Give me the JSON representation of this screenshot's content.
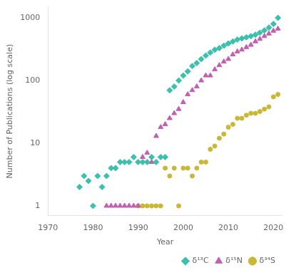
{
  "chart_data": {
    "type": "scatter",
    "xlabel": "Year",
    "ylabel": "Number of Publications (log scale)",
    "xlim": [
      1970,
      2022
    ],
    "ylim": [
      0.7,
      1500
    ],
    "xticks": [
      1970,
      1980,
      1990,
      2000,
      2010,
      2020
    ],
    "yticks": [
      1,
      10,
      100,
      1000
    ],
    "log": "y",
    "grid": false,
    "legend": "lower right",
    "series": [
      {
        "name": "δ¹³C",
        "color": "#3dbfad",
        "marker": "diamond",
        "x": [
          1977,
          1978,
          1979,
          1980,
          1981,
          1982,
          1983,
          1984,
          1985,
          1986,
          1987,
          1988,
          1989,
          1990,
          1991,
          1992,
          1993,
          1994,
          1995,
          1996,
          1997,
          1998,
          1999,
          2000,
          2001,
          2002,
          2003,
          2004,
          2005,
          2006,
          2007,
          2008,
          2009,
          2010,
          2011,
          2012,
          2013,
          2014,
          2015,
          2016,
          2017,
          2018,
          2019,
          2020,
          2021
        ],
        "values": [
          2.0,
          3.0,
          2.5,
          1.0,
          3.0,
          2.0,
          3.0,
          4.0,
          4.0,
          5.0,
          5.0,
          5.0,
          6.0,
          5.0,
          5.0,
          5.0,
          6.0,
          5.0,
          6.0,
          6.0,
          70,
          80,
          100,
          120,
          140,
          170,
          190,
          220,
          250,
          280,
          310,
          330,
          360,
          390,
          420,
          450,
          470,
          490,
          510,
          540,
          580,
          630,
          700,
          800,
          1000
        ]
      },
      {
        "name": "δ¹⁵N",
        "color": "#c060b0",
        "marker": "triangle",
        "x": [
          1983,
          1984,
          1985,
          1986,
          1987,
          1988,
          1989,
          1990,
          1991,
          1992,
          1993,
          1994,
          1995,
          1996,
          1997,
          1998,
          1999,
          2000,
          2001,
          2002,
          2003,
          2004,
          2005,
          2006,
          2007,
          2008,
          2009,
          2010,
          2011,
          2012,
          2013,
          2014,
          2015,
          2016,
          2017,
          2018,
          2019,
          2020,
          2021
        ],
        "values": [
          1,
          1,
          1,
          1,
          1,
          1,
          1,
          1,
          6,
          7,
          5,
          13,
          18,
          20,
          25,
          30,
          35,
          45,
          60,
          70,
          80,
          100,
          120,
          120,
          150,
          175,
          200,
          220,
          260,
          290,
          310,
          340,
          370,
          420,
          460,
          510,
          560,
          620,
          670
        ]
      },
      {
        "name": "δ³⁴S",
        "color": "#c8b838",
        "marker": "circle",
        "x": [
          1990,
          1991,
          1992,
          1993,
          1994,
          1995,
          1996,
          1997,
          1998,
          1999,
          2000,
          2001,
          2002,
          2003,
          2004,
          2005,
          2006,
          2007,
          2008,
          2009,
          2010,
          2011,
          2012,
          2013,
          2014,
          2015,
          2016,
          2017,
          2018,
          2019,
          2020,
          2021
        ],
        "values": [
          1,
          1,
          1,
          1,
          1,
          1,
          4,
          3,
          4,
          1,
          4,
          4,
          3,
          4,
          5,
          5,
          8,
          9,
          12,
          14,
          18,
          20,
          25,
          25,
          28,
          30,
          30,
          32,
          35,
          38,
          55,
          60
        ]
      }
    ]
  }
}
